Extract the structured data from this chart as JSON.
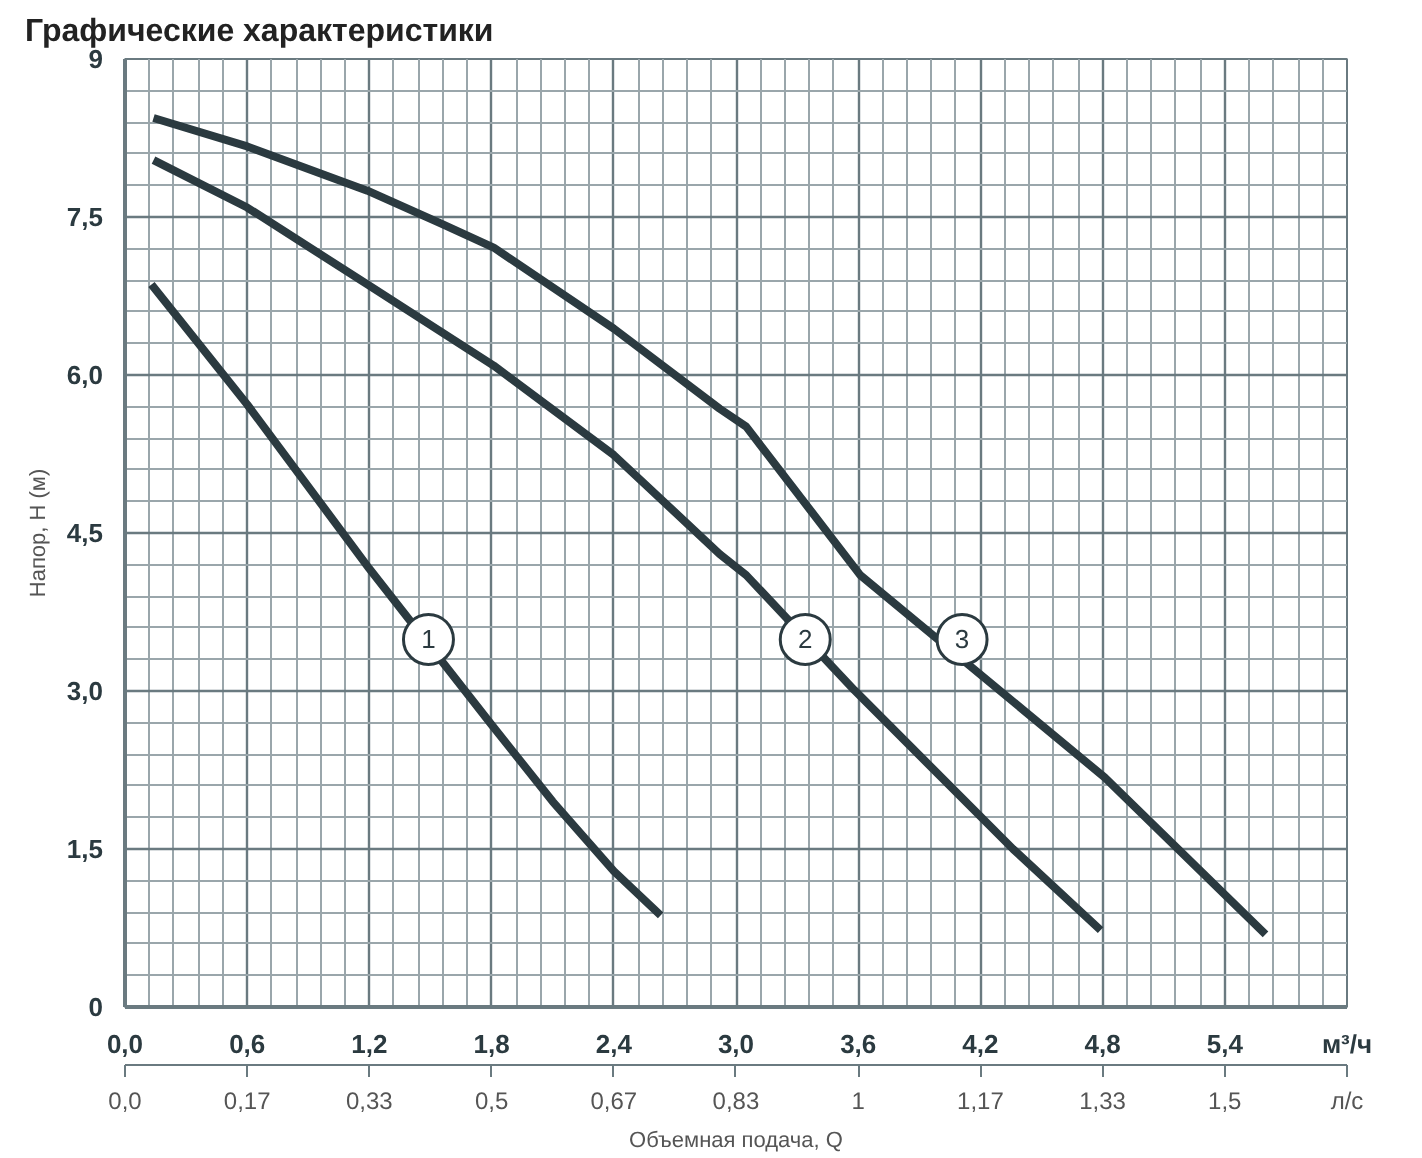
{
  "chart_data": {
    "type": "line",
    "title": "Графические характеристики",
    "xlabel": "Объемная подача, Q",
    "ylabel": "Напор, H (м)",
    "xlim": [
      0,
      6
    ],
    "xticks": [
      {
        "value": 0,
        "label": "0,0"
      },
      {
        "value": 0.6,
        "label": "0,6"
      },
      {
        "value": 1.2,
        "label": "1,2"
      },
      {
        "value": 1.8,
        "label": "1,8"
      },
      {
        "value": 2.4,
        "label": "2,4"
      },
      {
        "value": 3.0,
        "label": "3,0"
      },
      {
        "value": 3.6,
        "label": "3,6"
      },
      {
        "value": 4.2,
        "label": "4,2"
      },
      {
        "value": 4.8,
        "label": "4,8"
      },
      {
        "value": 5.4,
        "label": "5,4"
      }
    ],
    "x2lim": [
      0,
      1.6667
    ],
    "x2ticks": [
      {
        "value": 0,
        "label": "0,0"
      },
      {
        "value": 0.1667,
        "label": "0,17"
      },
      {
        "value": 0.3333,
        "label": "0,33"
      },
      {
        "value": 0.5,
        "label": "0,5"
      },
      {
        "value": 0.6667,
        "label": "0,67"
      },
      {
        "value": 0.8333,
        "label": "0,83"
      },
      {
        "value": 1,
        "label": "1"
      },
      {
        "value": 1.1667,
        "label": "1,17"
      },
      {
        "value": 1.3333,
        "label": "1,33"
      },
      {
        "value": 1.5,
        "label": "1,5"
      }
    ],
    "ylim": [
      0,
      9
    ],
    "yticks": [
      0,
      {
        "value": 1.5,
        "label": "1,5"
      },
      {
        "value": 3,
        "label": "3,0"
      },
      {
        "value": 4.5,
        "label": "4,5"
      },
      {
        "value": 6,
        "label": "6,0"
      },
      {
        "value": 7.5,
        "label": "7,5"
      },
      9
    ],
    "grid": true,
    "line_style": "solid",
    "marker": "none",
    "series": [
      {
        "color": "#2b3a40",
        "x": [
          0.13,
          0.6,
          1.2,
          1.8,
          2.1,
          2.4,
          2.63
        ],
        "values": [
          6.86,
          5.72,
          4.16,
          2.68,
          1.95,
          1.29,
          0.87
        ]
      },
      {
        "color": "#2b3a40",
        "x": [
          0.14,
          0.6,
          1.19,
          1.81,
          2.4,
          2.92,
          3.05,
          3.58,
          4.36,
          4.79
        ],
        "values": [
          8.04,
          7.59,
          6.86,
          6.09,
          5.24,
          4.3,
          4.1,
          3.01,
          1.5,
          0.73
        ]
      },
      {
        "color": "#2b3a40",
        "x": [
          0.14,
          0.6,
          1.19,
          1.55,
          1.81,
          2.4,
          2.92,
          3.05,
          3.61,
          4.81,
          5.6
        ],
        "values": [
          8.44,
          8.17,
          7.75,
          7.44,
          7.21,
          6.44,
          5.68,
          5.51,
          4.1,
          2.18,
          0.69
        ]
      }
    ],
    "annotations": [
      "м³/ч",
      "л/с",
      {
        "text": "1",
        "x": 1.49,
        "y": 3.49
      },
      {
        "text": "2",
        "x": 3.34,
        "y": 3.49
      },
      {
        "text": "3",
        "x": 4.11,
        "y": 3.49
      }
    ]
  }
}
